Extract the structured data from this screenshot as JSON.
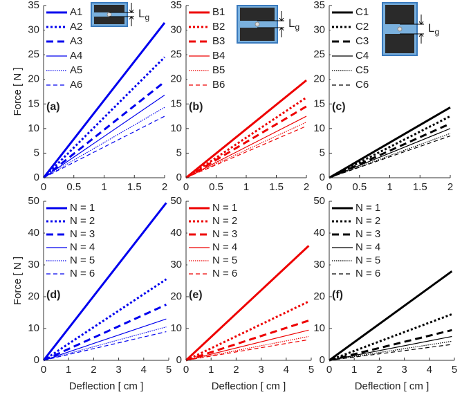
{
  "chart_data": [
    {
      "type": "line",
      "label": "(a)",
      "y_label": "Force [ N ]",
      "inset_label": "L",
      "inset_subscript": "g",
      "x": [
        0,
        2
      ],
      "xlim": [
        0,
        2
      ],
      "ylim": [
        0,
        35
      ],
      "xticks": [
        0,
        0.5,
        1,
        1.5,
        2
      ],
      "yticks": [
        0,
        5,
        10,
        15,
        20,
        25,
        30,
        35
      ],
      "series": [
        {
          "name": "A1",
          "color": "#0000ee",
          "values": [
            0,
            31.5
          ]
        },
        {
          "name": "A2",
          "color": "#0000ee",
          "values": [
            0,
            24.5
          ]
        },
        {
          "name": "A3",
          "color": "#0000ee",
          "values": [
            0,
            19.5
          ]
        },
        {
          "name": "A4",
          "color": "#0000ee",
          "values": [
            0,
            16.8
          ]
        },
        {
          "name": "A5",
          "color": "#0000ee",
          "values": [
            0,
            14.3
          ]
        },
        {
          "name": "A6",
          "color": "#0000ee",
          "values": [
            0,
            12.5
          ]
        }
      ]
    },
    {
      "type": "line",
      "label": "(b)",
      "inset_label": "L",
      "inset_subscript": "g",
      "x": [
        0,
        2
      ],
      "xlim": [
        0,
        2
      ],
      "ylim": [
        0,
        35
      ],
      "xticks": [
        0,
        0.5,
        1,
        1.5,
        2
      ],
      "yticks": [
        0,
        5,
        10,
        15,
        20,
        25,
        30,
        35
      ],
      "series": [
        {
          "name": "B1",
          "color": "#ee0000",
          "values": [
            0,
            19.8
          ]
        },
        {
          "name": "B2",
          "color": "#ee0000",
          "values": [
            0,
            16.3
          ]
        },
        {
          "name": "B3",
          "color": "#ee0000",
          "values": [
            0,
            14.5
          ]
        },
        {
          "name": "B4",
          "color": "#ee0000",
          "values": [
            0,
            12.5
          ]
        },
        {
          "name": "B5",
          "color": "#ee0000",
          "values": [
            0,
            11.3
          ]
        },
        {
          "name": "B6",
          "color": "#ee0000",
          "values": [
            0,
            10.5
          ]
        }
      ]
    },
    {
      "type": "line",
      "label": "(c)",
      "inset_label": "L",
      "inset_subscript": "g",
      "x": [
        0,
        2
      ],
      "xlim": [
        0,
        2
      ],
      "ylim": [
        0,
        35
      ],
      "xticks": [
        0,
        0.5,
        1,
        1.5,
        2
      ],
      "yticks": [
        0,
        5,
        10,
        15,
        20,
        25,
        30,
        35
      ],
      "series": [
        {
          "name": "C1",
          "color": "#000000",
          "values": [
            0,
            14.3
          ]
        },
        {
          "name": "C2",
          "color": "#000000",
          "values": [
            0,
            12.5
          ]
        },
        {
          "name": "C3",
          "color": "#000000",
          "values": [
            0,
            11
          ]
        },
        {
          "name": "C4",
          "color": "#000000",
          "values": [
            0,
            10
          ]
        },
        {
          "name": "C5",
          "color": "#000000",
          "values": [
            0,
            9
          ]
        },
        {
          "name": "C6",
          "color": "#000000",
          "values": [
            0,
            8.5
          ]
        }
      ]
    },
    {
      "type": "line",
      "label": "(d)",
      "y_label": "Force [ N ]",
      "x_label": "Deflection [ cm ]",
      "x": [
        0,
        4.9
      ],
      "xlim": [
        0,
        5
      ],
      "ylim": [
        0,
        50
      ],
      "xticks": [
        0,
        1,
        2,
        3,
        4,
        5
      ],
      "yticks": [
        0,
        10,
        20,
        30,
        40,
        50
      ],
      "series": [
        {
          "name": "N = 1",
          "color": "#0000ee",
          "values": [
            0,
            49.5
          ]
        },
        {
          "name": "N = 2",
          "color": "#0000ee",
          "values": [
            0,
            25.5
          ]
        },
        {
          "name": "N = 3",
          "color": "#0000ee",
          "values": [
            0,
            17.5
          ]
        },
        {
          "name": "N = 4",
          "color": "#0000ee",
          "values": [
            0,
            13
          ]
        },
        {
          "name": "N = 5",
          "color": "#0000ee",
          "values": [
            0,
            10.5
          ]
        },
        {
          "name": "N = 6",
          "color": "#0000ee",
          "values": [
            0,
            9
          ]
        }
      ]
    },
    {
      "type": "line",
      "label": "(e)",
      "x_label": "Deflection [ cm ]",
      "x": [
        0,
        4.9
      ],
      "xlim": [
        0,
        5
      ],
      "ylim": [
        0,
        50
      ],
      "xticks": [
        0,
        1,
        2,
        3,
        4,
        5
      ],
      "yticks": [
        0,
        10,
        20,
        30,
        40,
        50
      ],
      "series": [
        {
          "name": "N = 1",
          "color": "#ee0000",
          "values": [
            0,
            36
          ]
        },
        {
          "name": "N = 2",
          "color": "#ee0000",
          "values": [
            0,
            18.5
          ]
        },
        {
          "name": "N = 3",
          "color": "#ee0000",
          "values": [
            0,
            12.5
          ]
        },
        {
          "name": "N = 4",
          "color": "#ee0000",
          "values": [
            0,
            9.5
          ]
        },
        {
          "name": "N = 5",
          "color": "#ee0000",
          "values": [
            0,
            7.5
          ]
        },
        {
          "name": "N = 6",
          "color": "#ee0000",
          "values": [
            0,
            6.5
          ]
        }
      ]
    },
    {
      "type": "line",
      "label": "(f)",
      "x_label": "Deflection [ cm ]",
      "x": [
        0,
        4.9
      ],
      "xlim": [
        0,
        5
      ],
      "ylim": [
        0,
        50
      ],
      "xticks": [
        0,
        1,
        2,
        3,
        4,
        5
      ],
      "yticks": [
        0,
        10,
        20,
        30,
        40,
        50
      ],
      "series": [
        {
          "name": "N = 1",
          "color": "#000000",
          "values": [
            0,
            28
          ]
        },
        {
          "name": "N = 2",
          "color": "#000000",
          "values": [
            0,
            14.5
          ]
        },
        {
          "name": "N = 3",
          "color": "#000000",
          "values": [
            0,
            9.5
          ]
        },
        {
          "name": "N = 4",
          "color": "#000000",
          "values": [
            0,
            7.5
          ]
        },
        {
          "name": "N = 5",
          "color": "#000000",
          "values": [
            0,
            6
          ]
        },
        {
          "name": "N = 6",
          "color": "#000000",
          "values": [
            0,
            5
          ]
        }
      ]
    }
  ]
}
